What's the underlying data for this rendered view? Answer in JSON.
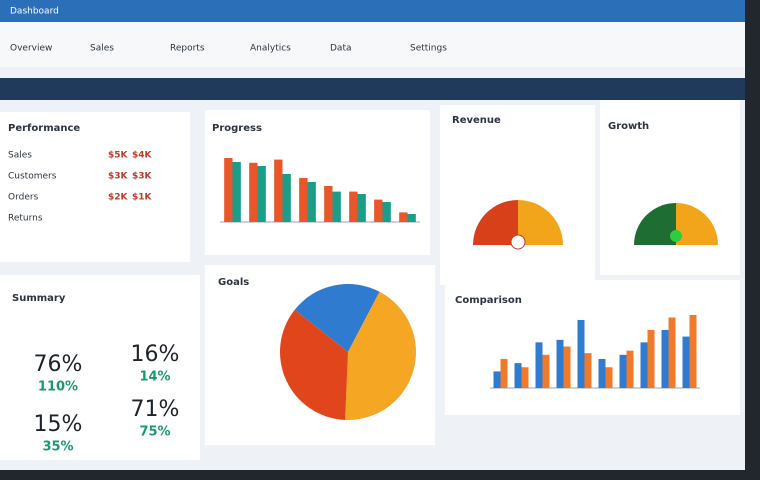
{
  "header": {
    "title": "Dashboard",
    "nav": [
      "Overview",
      "Sales",
      "Reports",
      "Analytics",
      "Data",
      "Settings"
    ]
  },
  "table_panel": {
    "title": "Performance",
    "rows": [
      [
        "Sales",
        "$5K",
        "$4K"
      ],
      [
        "Customers",
        "$3K",
        "$3K"
      ],
      [
        "Orders",
        "$2K",
        "$1K"
      ],
      [
        "Returns",
        "",
        ""
      ]
    ]
  },
  "progress_chart": {
    "title": "Progress",
    "series": [
      {
        "color": "#e8562a",
        "values": [
          80,
          74,
          78,
          55,
          45,
          38,
          28,
          12
        ]
      },
      {
        "color": "#1a9e8a",
        "values": [
          75,
          70,
          60,
          50,
          38,
          35,
          25,
          10
        ]
      }
    ]
  },
  "gauge_revenue": {
    "title": "Revenue",
    "colors": [
      "#d8401a",
      "#f2a51a"
    ],
    "values": [
      50,
      50
    ]
  },
  "gauge_growth": {
    "title": "Growth",
    "colors": [
      "#1e6e34",
      "#f2a51a"
    ],
    "values": [
      50,
      50
    ]
  },
  "summary": {
    "title": "Summary",
    "kpis": [
      {
        "value": "76%",
        "sub": "110%"
      },
      {
        "value": "16%",
        "sub": "14%"
      },
      {
        "value": "15%",
        "sub": "35%"
      },
      {
        "value": "71%",
        "sub": "75%"
      }
    ]
  },
  "pie": {
    "title": "Goals",
    "colors": [
      "#2f7bd0",
      "#f5a623",
      "#e0451c"
    ],
    "values": [
      22,
      43,
      35
    ]
  },
  "comparison": {
    "title": "Comparison",
    "series": [
      {
        "color": "#2f7bd0",
        "values": [
          20,
          30,
          55,
          58,
          82,
          35,
          40,
          55,
          70,
          62
        ]
      },
      {
        "color": "#f07a2a",
        "values": [
          35,
          25,
          40,
          50,
          42,
          25,
          45,
          70,
          85,
          88
        ]
      }
    ]
  }
}
